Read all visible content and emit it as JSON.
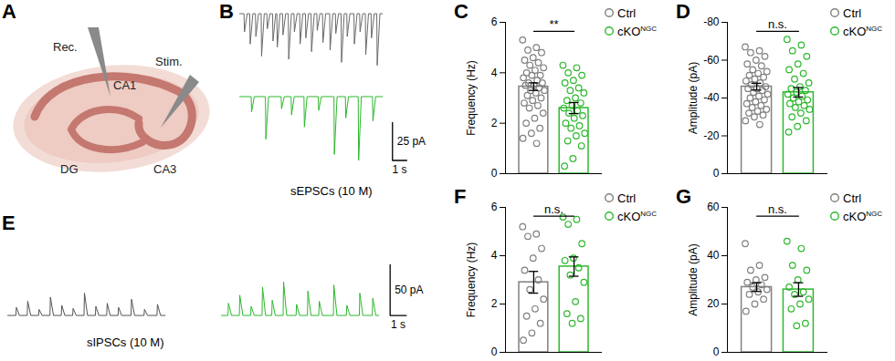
{
  "chart_data": [
    {
      "panel": "A",
      "type": "diagram",
      "labels": {
        "rec": "Rec.",
        "ca1": "CA1",
        "stim": "Stim.",
        "dg": "DG",
        "ca3": "CA3"
      }
    },
    {
      "panel": "B",
      "type": "trace",
      "tick_labels": false,
      "caption": "sEPSCs (10 M)",
      "scale_bar": {
        "y": 25,
        "y_label": "25 pA",
        "x": 1,
        "x_label": "1 s"
      },
      "series": [
        {
          "name": "Ctrl",
          "color": "#6b6b6b",
          "events": {
            "time": [
              0.3,
              0.7,
              1.1,
              1.5,
              1.9,
              2.3,
              2.6,
              3.0,
              3.4,
              3.8,
              4.2,
              4.6,
              5.0,
              5.4,
              5.8,
              6.3,
              6.7,
              7.1,
              7.5,
              8.0,
              8.4,
              8.8,
              9.2,
              9.6
            ],
            "amplitude": [
              -12,
              -20,
              -15,
              -28,
              -10,
              -18,
              -22,
              -14,
              -30,
              -12,
              -20,
              -16,
              -25,
              -11,
              -19,
              -24,
              -13,
              -32,
              -15,
              -20,
              -12,
              -27,
              -16,
              -34
            ]
          }
        },
        {
          "name": "cKO",
          "color": "#2eb82e",
          "events": {
            "time": [
              0.8,
              1.8,
              2.9,
              3.6,
              4.5,
              5.5,
              6.6,
              7.4,
              8.3,
              9.3
            ],
            "amplitude": [
              -10,
              -28,
              -8,
              -12,
              -20,
              -9,
              -38,
              -14,
              -42,
              -16
            ]
          }
        }
      ]
    },
    {
      "panel": "C",
      "type": "bar",
      "ylabel": "Frequency (Hz)",
      "ylim": [
        0,
        6
      ],
      "yticks": [
        0,
        2,
        4,
        6
      ],
      "tick_labels": "y",
      "significance": "**",
      "series": [
        {
          "name": "Ctrl",
          "color": "#808080",
          "values": [
            3.45
          ],
          "error": [
            0.15
          ],
          "points": [
            5.3,
            5.0,
            4.9,
            4.8,
            4.6,
            4.5,
            4.4,
            4.3,
            4.2,
            4.1,
            4.0,
            3.9,
            3.9,
            3.8,
            3.7,
            3.6,
            3.6,
            3.5,
            3.5,
            3.4,
            3.3,
            3.3,
            3.2,
            3.1,
            3.0,
            2.9,
            2.8,
            2.7,
            2.6,
            2.4,
            2.2,
            2.0,
            1.8,
            1.6,
            1.4,
            1.2
          ]
        },
        {
          "name": "cKO",
          "name_superscript": "NGC",
          "color": "#2eb82e",
          "values": [
            2.6
          ],
          "error": [
            0.22
          ],
          "points": [
            4.3,
            4.2,
            4.0,
            3.9,
            3.7,
            3.6,
            3.4,
            3.3,
            3.2,
            3.0,
            2.9,
            2.8,
            2.7,
            2.6,
            2.5,
            2.4,
            2.3,
            2.2,
            2.0,
            1.9,
            1.8,
            1.6,
            1.5,
            1.3,
            1.1,
            0.6,
            0.3
          ]
        }
      ]
    },
    {
      "panel": "D",
      "type": "bar",
      "ylabel": "Amplitude (pA)",
      "ylim": [
        0,
        -80
      ],
      "yticks": [
        -80,
        -60,
        -40,
        -20,
        0
      ],
      "tick_labels": "y",
      "significance": "n.s.",
      "series": [
        {
          "name": "Ctrl",
          "color": "#808080",
          "values": [
            -46
          ],
          "error": [
            1.8
          ],
          "points": [
            -67,
            -65,
            -64,
            -62,
            -60,
            -58,
            -57,
            -55,
            -54,
            -53,
            -52,
            -51,
            -50,
            -49,
            -48,
            -47,
            -46,
            -45,
            -45,
            -44,
            -43,
            -42,
            -41,
            -40,
            -39,
            -38,
            -37,
            -36,
            -35,
            -34,
            -33,
            -32,
            -31,
            -30,
            -28,
            -26
          ]
        },
        {
          "name": "cKO",
          "name_superscript": "NGC",
          "color": "#2eb82e",
          "values": [
            -43
          ],
          "error": [
            2.5
          ],
          "points": [
            -71,
            -68,
            -65,
            -62,
            -58,
            -55,
            -53,
            -50,
            -48,
            -46,
            -45,
            -44,
            -43,
            -42,
            -41,
            -40,
            -39,
            -38,
            -37,
            -36,
            -35,
            -34,
            -32,
            -30,
            -28,
            -25,
            -22
          ]
        }
      ]
    },
    {
      "panel": "E",
      "type": "trace",
      "tick_labels": false,
      "caption": "sIPSCs (10 M)",
      "scale_bar": {
        "y": 50,
        "y_label": "50 pA",
        "x": 1,
        "x_label": "1 s"
      },
      "series": [
        {
          "name": "Ctrl",
          "color": "#555555",
          "events": {
            "time": [
              0.5,
              1.2,
              1.9,
              2.6,
              3.3,
              4.0,
              4.7,
              5.4,
              6.1,
              6.8,
              7.6,
              8.4,
              9.2
            ],
            "amplitude": [
              8,
              14,
              6,
              18,
              10,
              7,
              22,
              9,
              12,
              8,
              16,
              6,
              11
            ]
          }
        },
        {
          "name": "cKO",
          "color": "#2eb82e",
          "events": {
            "time": [
              0.4,
              1.1,
              1.8,
              2.5,
              3.1,
              3.8,
              4.6,
              5.3,
              6.0,
              6.9,
              7.7,
              8.5,
              9.3
            ],
            "amplitude": [
              12,
              20,
              9,
              28,
              15,
              33,
              11,
              24,
              14,
              30,
              10,
              22,
              17
            ]
          }
        }
      ]
    },
    {
      "panel": "F",
      "type": "bar",
      "ylabel": "Frequency (Hz)",
      "ylim": [
        0,
        6
      ],
      "yticks": [
        0,
        2,
        4,
        6
      ],
      "tick_labels": "y",
      "significance": "n.s.",
      "series": [
        {
          "name": "Ctrl",
          "color": "#808080",
          "values": [
            2.9
          ],
          "error": [
            0.45
          ],
          "points": [
            5.2,
            4.9,
            4.8,
            4.3,
            3.9,
            3.4,
            3.0,
            2.6,
            2.2,
            1.8,
            1.5,
            1.2,
            0.8,
            0.5
          ]
        },
        {
          "name": "cKO",
          "name_superscript": "NGC",
          "color": "#2eb82e",
          "values": [
            3.55
          ],
          "error": [
            0.4
          ],
          "points": [
            5.6,
            5.5,
            5.3,
            4.5,
            3.9,
            3.8,
            3.5,
            3.2,
            2.9,
            2.1,
            1.6,
            1.4,
            1.2
          ]
        }
      ]
    },
    {
      "panel": "G",
      "type": "bar",
      "ylabel": "Amplitude (pA)",
      "ylim": [
        0,
        60
      ],
      "yticks": [
        0,
        20,
        40,
        60
      ],
      "tick_labels": "y",
      "significance": "n.s.",
      "series": [
        {
          "name": "Ctrl",
          "color": "#808080",
          "values": [
            27
          ],
          "error": [
            1.8
          ],
          "points": [
            45,
            36,
            34,
            31,
            30,
            29,
            28,
            27,
            26,
            25,
            24,
            22,
            20,
            17
          ]
        },
        {
          "name": "cKO",
          "name_superscript": "NGC",
          "color": "#2eb82e",
          "values": [
            26
          ],
          "error": [
            2.8
          ],
          "points": [
            46,
            43,
            36,
            34,
            30,
            27,
            25,
            24,
            22,
            20,
            18,
            12,
            11
          ]
        }
      ]
    }
  ]
}
